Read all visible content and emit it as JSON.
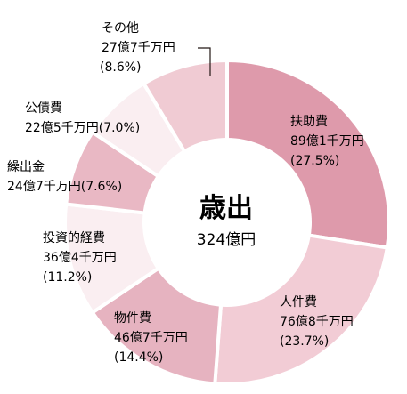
{
  "chart_data": {
    "type": "pie",
    "title": "歳出",
    "total_label": "324億円",
    "slices": [
      {
        "name": "扶助費",
        "amount_label": "89億1千万円",
        "percent_label": "(27.5%)",
        "value": 27.5,
        "color": "#de9aab"
      },
      {
        "name": "人件費",
        "amount_label": "76億8千万円",
        "percent_label": "(23.7%)",
        "value": 23.7,
        "color": "#f2ccd5"
      },
      {
        "name": "物件費",
        "amount_label": "46億7千万円",
        "percent_label": "(14.4%)",
        "value": 14.4,
        "color": "#e6b3c0"
      },
      {
        "name": "投資的経費",
        "amount_label": "36億4千万円",
        "percent_label": "(11.2%)",
        "value": 11.2,
        "color": "#faeef1"
      },
      {
        "name": "繰出金",
        "amount_label": "24億7千万円",
        "percent_label": "(7.6%)",
        "value": 7.6,
        "color": "#e9b8c4"
      },
      {
        "name": "公債費",
        "amount_label": "22億5千万円",
        "percent_label": "(7.0%)",
        "value": 7.0,
        "color": "#faeef1"
      },
      {
        "name": "その他",
        "amount_label": "27億7千万円",
        "percent_label": "(8.6%)",
        "value": 8.6,
        "color": "#f0cbd3"
      }
    ]
  }
}
